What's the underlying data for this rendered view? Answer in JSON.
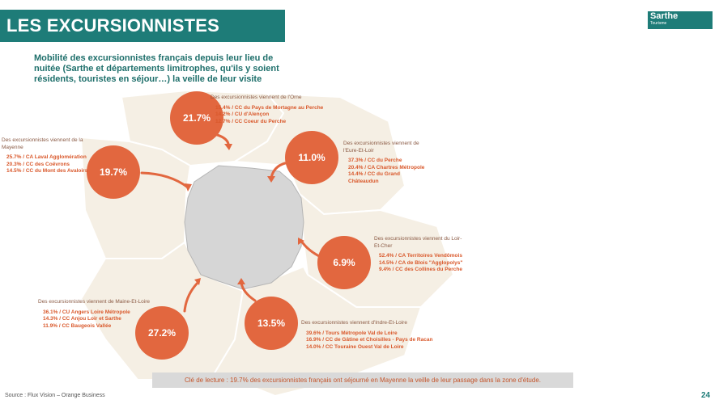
{
  "header": {
    "title": "LES EXCURSIONNISTES FRANÇAIS",
    "logo": "Sarthe",
    "logo_sub": "Tourisme"
  },
  "subtitle": "Mobilité des excursionnistes français depuis leur lieu de nuitée (Sarthe et départements limitrophes, qu'ils y soient résidents, touristes en séjour…) la veille de leur visite",
  "regions": [
    {
      "heading": "Des excursionnistes viennent de l'Orne",
      "percent": "21.7%",
      "lines": [
        "15.4% / CC du Pays de Mortagne au Perche",
        "14.2% / CU d'Alençon",
        "12.7% / CC Coeur du Perche"
      ]
    },
    {
      "heading": "Des excursionnistes viennent de la Mayenne",
      "percent": "19.7%",
      "lines": [
        "25.7% / CA Laval Agglomération",
        "20.3% / CC des Coëvrons",
        "14.5% / CC du Mont des Avaloirs"
      ]
    },
    {
      "heading": "Des excursionnistes viennent de l'Eure-Et-Loir",
      "percent": "11.0%",
      "lines": [
        "37.3% / CC du Perche",
        "20.4% / CA Chartres Métropole",
        "14.4% / CC du Grand Châteaudun"
      ]
    },
    {
      "heading": "Des excursionnistes viennent du Loir-Et-Cher",
      "percent": "6.9%",
      "lines": [
        "52.4% / CA Territoires Vendômois",
        "14.5% / CA de Blois \"Agglopolys\"",
        "9.4% / CC des Collines du Perche"
      ]
    },
    {
      "heading": "Des excursionnistes viennent de Maine-Et-Loire",
      "percent": "27.2%",
      "lines": [
        "36.1% / CU Angers Loire Métropole",
        "14.3% / CC Anjou Loir et Sarthe",
        "11.9% / CC Baugeois Vallée"
      ]
    },
    {
      "heading": "Des excursionnistes viennent d'Indre-Et-Loire",
      "percent": "13.5%",
      "lines": [
        "39.6% / Tours Métropole Val de Loire",
        "16.9% / CC de Gâtine et Choisilles - Pays de Racan",
        "14.0% / CC Touraine Ouest Val de Loire"
      ]
    }
  ],
  "key": "Clé de lecture : 19.7% des excursionnistes français ont séjourné en Mayenne la veille de leur passage dans la zone d'étude.",
  "source": "Source : Flux Vision – Orange Business",
  "page": "24"
}
